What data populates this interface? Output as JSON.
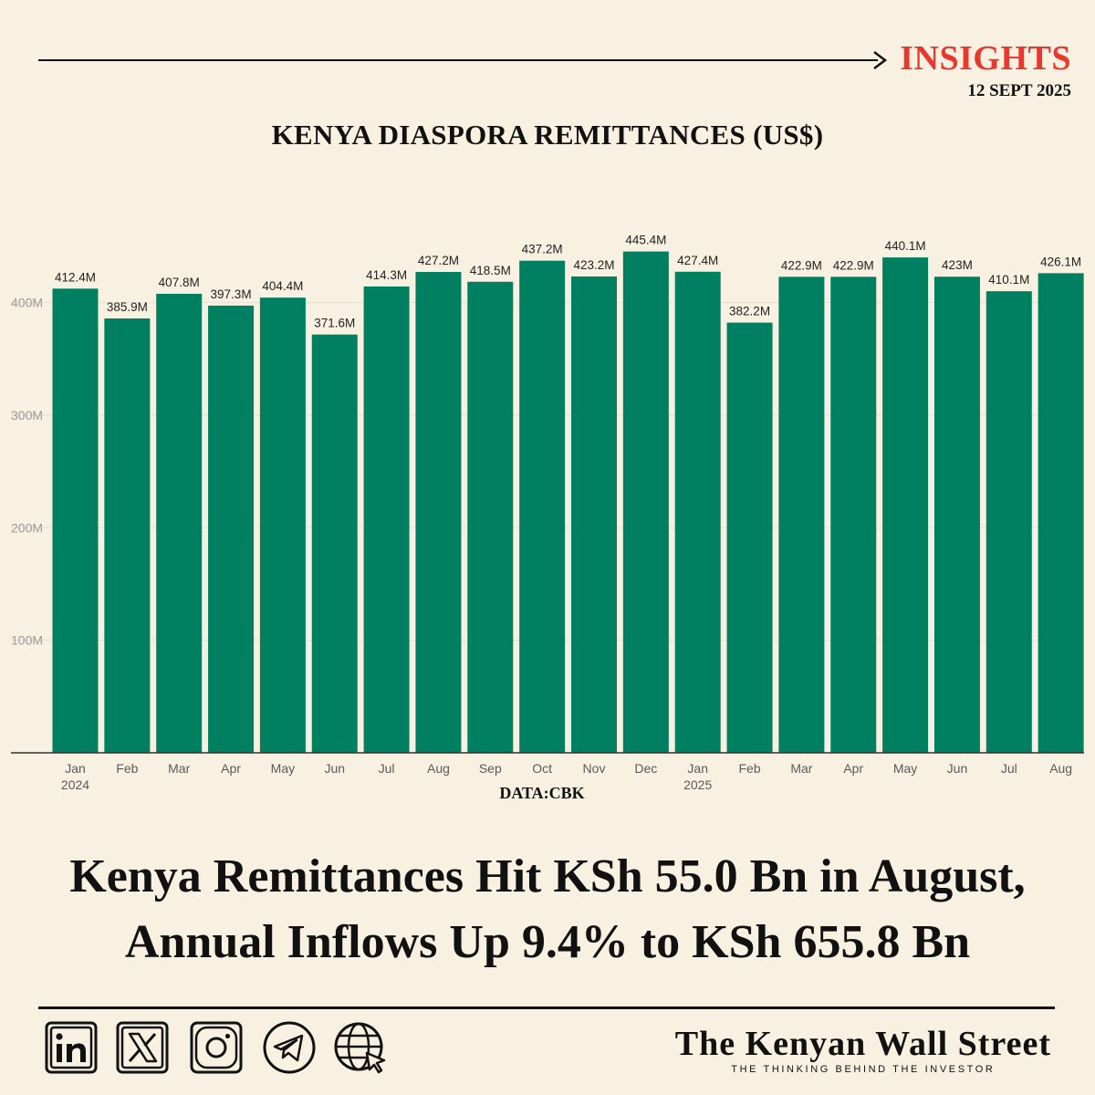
{
  "header": {
    "insights_label": "INSIGHTS",
    "date": "12 SEPT 2025"
  },
  "chart_title": "KENYA DIASPORA REMITTANCES (US$)",
  "chart_data": {
    "type": "bar",
    "title": "KENYA DIASPORA REMITTANCES (US$)",
    "categories": [
      "Jan",
      "Feb",
      "Mar",
      "Apr",
      "May",
      "Jun",
      "Jul",
      "Aug",
      "Sep",
      "Oct",
      "Nov",
      "Dec",
      "Jan",
      "Feb",
      "Mar",
      "Apr",
      "May",
      "Jun",
      "Jul",
      "Aug"
    ],
    "year_labels": [
      "2024",
      "",
      "",
      "",
      "",
      "",
      "",
      "",
      "",
      "",
      "",
      "",
      "2025",
      "",
      "",
      "",
      "",
      "",
      "",
      ""
    ],
    "values": [
      412.4,
      385.9,
      407.8,
      397.3,
      404.4,
      371.6,
      414.3,
      427.2,
      418.5,
      437.2,
      423.2,
      445.4,
      427.4,
      382.2,
      422.9,
      422.9,
      440.1,
      423,
      410.1,
      426.1
    ],
    "data_labels": [
      "412.4M",
      "385.9M",
      "407.8M",
      "397.3M",
      "404.4M",
      "371.6M",
      "414.3M",
      "427.2M",
      "418.5M",
      "437.2M",
      "423.2M",
      "445.4M",
      "427.4M",
      "382.2M",
      "422.9M",
      "422.9M",
      "440.1M",
      "423M",
      "410.1M",
      "426.1M"
    ],
    "y_ticks": [
      100,
      200,
      300,
      400
    ],
    "y_tick_labels": [
      "100M",
      "200M",
      "300M",
      "400M"
    ],
    "ylim": [
      0,
      500
    ],
    "grid": true,
    "xlabel": "",
    "ylabel": "",
    "bar_color": "#008060"
  },
  "source_label": "DATA:CBK",
  "headline": {
    "line1": "Kenya Remittances Hit KSh 55.0 Bn in August,",
    "line2": "Annual Inflows Up 9.4% to KSh 655.8 Bn"
  },
  "footer": {
    "social_icons": [
      "linkedin-icon",
      "x-icon",
      "instagram-icon",
      "telegram-icon",
      "globe-icon"
    ],
    "brand_name": "The Kenyan Wall Street",
    "brand_tagline": "THE THINKING BEHIND THE INVESTOR"
  },
  "colors": {
    "accent": "#e8372c",
    "background": "#f8f1e2",
    "bar": "#008060"
  }
}
